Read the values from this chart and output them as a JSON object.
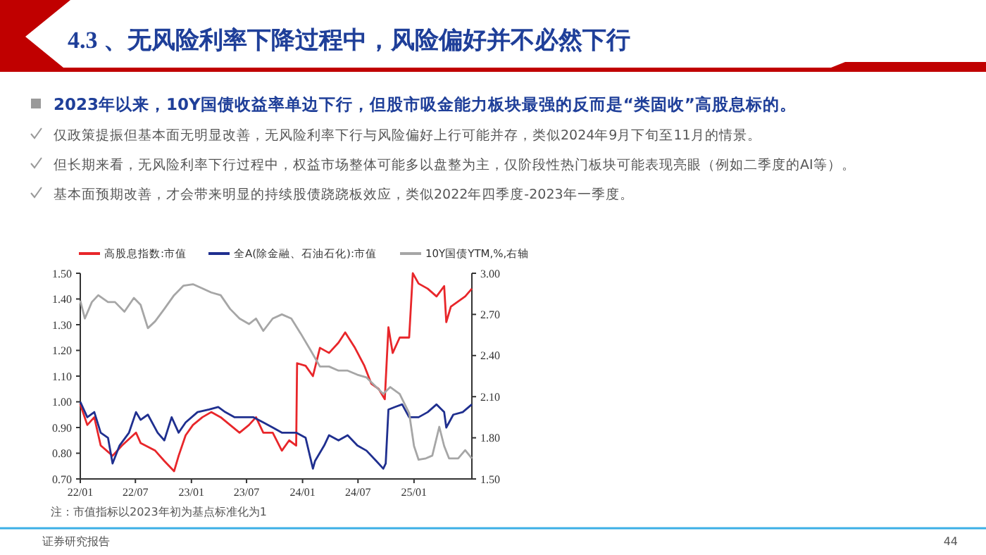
{
  "chart_data": {
    "type": "line",
    "title": "4.3 、无风险利率下降过程中，风险偏好并不必然下行",
    "subtitle": "2023年以来，10Y国债收益率单边下行，但股市吸金能力板块最强的反而是“类固收”高股息标的。",
    "annotations": [
      "仅政策提振但基本面无明显改善，无风险利率下行与风险偏好上行可能并存，类似2024年9月下旬至11月的情景。",
      "但长期来看，无风险利率下行过程中，权益市场整体可能多以盘整为主，仅阶段性热门板块可能表现亮眼（例如二季度的AI等）。",
      "基本面预期改善，才会带来明显的持续股债跷跷板效应，类似2022年四季度-2023年一季度。",
      "注：市值指标以2023年初为基点标准化为1",
      "证券研究报告",
      "44"
    ],
    "xlim": [
      "2022-01-01",
      "2025-07-10"
    ],
    "xticks": [
      {
        "value": "2022-01-01",
        "label": "22/01"
      },
      {
        "value": "2022-07-01",
        "label": "22/07"
      },
      {
        "value": "2023-01-01",
        "label": "23/01"
      },
      {
        "value": "2023-07-01",
        "label": "23/07"
      },
      {
        "value": "2024-01-01",
        "label": "24/01"
      },
      {
        "value": "2024-07-01",
        "label": "24/07"
      },
      {
        "value": "2025-01-01",
        "label": "25/01"
      }
    ],
    "ylim": [
      0.7,
      1.5
    ],
    "yticks": [
      {
        "value": 0.7,
        "label": "0.70"
      },
      {
        "value": 0.8,
        "label": "0.80"
      },
      {
        "value": 0.9,
        "label": "0.90"
      },
      {
        "value": 1.0,
        "label": "1.00"
      },
      {
        "value": 1.1,
        "label": "1.10"
      },
      {
        "value": 1.2,
        "label": "1.20"
      },
      {
        "value": 1.3,
        "label": "1.30"
      },
      {
        "value": 1.4,
        "label": "1.40"
      },
      {
        "value": 1.5,
        "label": "1.50"
      }
    ],
    "y2lim": [
      1.5,
      3.0
    ],
    "y2ticks": [
      {
        "value": 1.5,
        "label": "1.50"
      },
      {
        "value": 1.8,
        "label": "1.80"
      },
      {
        "value": 2.1,
        "label": "2.10"
      },
      {
        "value": 2.4,
        "label": "2.40"
      },
      {
        "value": 2.7,
        "label": "2.70"
      },
      {
        "value": 3.0,
        "label": "3.00"
      }
    ],
    "legend": "top",
    "grid": false,
    "marker": "none",
    "line_style": "solid",
    "series": [
      {
        "name": "高股息指数:市值",
        "color": "#e8262a",
        "x": [
          "2022-01-01",
          "2022-01-24",
          "2022-02-16",
          "2022-03-09",
          "2022-04-17",
          "2022-05-18",
          "2022-07-03",
          "2022-07-18",
          "2022-09-04",
          "2022-10-04",
          "2022-11-05",
          "2022-11-20",
          "2022-12-13",
          "2023-01-06",
          "2023-02-06",
          "2023-03-07",
          "2023-04-07",
          "2023-05-08",
          "2023-06-08",
          "2023-07-09",
          "2023-08-01",
          "2023-08-25",
          "2023-09-25",
          "2023-10-25",
          "2023-11-18",
          "2023-12-11",
          "2023-12-14",
          "2024-01-11",
          "2024-02-04",
          "2024-02-27",
          "2024-03-28",
          "2024-04-28",
          "2024-05-20",
          "2024-06-21",
          "2024-07-22",
          "2024-08-14",
          "2024-09-07",
          "2024-09-27",
          "2024-10-09",
          "2024-10-23",
          "2024-11-15",
          "2024-12-16",
          "2024-12-28",
          "2025-01-16",
          "2025-02-15",
          "2025-03-16",
          "2025-04-10",
          "2025-04-17",
          "2025-05-02",
          "2025-06-18",
          "2025-07-10"
        ],
        "values": [
          0.99,
          0.91,
          0.94,
          0.83,
          0.79,
          0.83,
          0.88,
          0.84,
          0.81,
          0.77,
          0.73,
          0.79,
          0.87,
          0.91,
          0.94,
          0.96,
          0.94,
          0.91,
          0.88,
          0.91,
          0.94,
          0.88,
          0.88,
          0.81,
          0.85,
          0.83,
          1.15,
          1.14,
          1.1,
          1.21,
          1.19,
          1.23,
          1.27,
          1.21,
          1.14,
          1.07,
          1.05,
          1.01,
          1.29,
          1.19,
          1.25,
          1.25,
          1.5,
          1.46,
          1.44,
          1.41,
          1.45,
          1.31,
          1.37,
          1.41,
          1.44
        ]
      },
      {
        "name": "全A(除金融、石油石化):市值",
        "color": "#1f2f8f",
        "x": [
          "2022-01-01",
          "2022-01-24",
          "2022-02-16",
          "2022-03-09",
          "2022-04-02",
          "2022-04-17",
          "2022-05-10",
          "2022-06-10",
          "2022-07-03",
          "2022-07-18",
          "2022-08-11",
          "2022-09-12",
          "2022-10-04",
          "2022-10-28",
          "2022-11-20",
          "2022-12-13",
          "2023-01-21",
          "2023-02-28",
          "2023-03-30",
          "2023-04-22",
          "2023-05-23",
          "2023-06-23",
          "2023-07-24",
          "2023-08-25",
          "2023-09-25",
          "2023-10-25",
          "2023-12-11",
          "2024-01-11",
          "2024-02-04",
          "2024-02-11",
          "2024-03-12",
          "2024-03-28",
          "2024-04-28",
          "2024-05-28",
          "2024-06-29",
          "2024-07-29",
          "2024-08-30",
          "2024-09-22",
          "2024-09-30",
          "2024-10-09",
          "2024-10-31",
          "2024-11-23",
          "2024-12-16",
          "2025-01-16",
          "2025-02-15",
          "2025-03-16",
          "2025-04-10",
          "2025-04-17",
          "2025-05-10",
          "2025-06-10",
          "2025-07-10"
        ],
        "values": [
          1.0,
          0.94,
          0.96,
          0.88,
          0.86,
          0.76,
          0.83,
          0.88,
          0.96,
          0.93,
          0.95,
          0.88,
          0.85,
          0.94,
          0.88,
          0.92,
          0.96,
          0.97,
          0.98,
          0.96,
          0.94,
          0.94,
          0.94,
          0.92,
          0.9,
          0.88,
          0.88,
          0.86,
          0.74,
          0.77,
          0.83,
          0.87,
          0.85,
          0.87,
          0.83,
          0.81,
          0.77,
          0.74,
          0.76,
          0.97,
          0.98,
          0.99,
          0.94,
          0.94,
          0.96,
          0.99,
          0.96,
          0.9,
          0.95,
          0.96,
          0.99
        ]
      },
      {
        "name": "10Y国债YTM,%,右轴",
        "color": "#a6a6a6",
        "axis": "y2",
        "x": [
          "2022-01-01",
          "2022-01-16",
          "2022-02-08",
          "2022-03-01",
          "2022-04-02",
          "2022-04-25",
          "2022-05-26",
          "2022-06-26",
          "2022-07-18",
          "2022-08-11",
          "2022-09-04",
          "2022-10-04",
          "2022-11-05",
          "2022-12-06",
          "2023-01-06",
          "2023-02-06",
          "2023-03-07",
          "2023-04-07",
          "2023-05-08",
          "2023-06-08",
          "2023-07-09",
          "2023-08-01",
          "2023-08-25",
          "2023-09-25",
          "2023-10-25",
          "2023-11-25",
          "2023-12-26",
          "2024-01-27",
          "2024-02-27",
          "2024-03-28",
          "2024-04-28",
          "2024-05-28",
          "2024-06-29",
          "2024-07-29",
          "2024-08-30",
          "2024-09-22",
          "2024-10-15",
          "2024-11-15",
          "2024-12-16",
          "2025-01-01",
          "2025-01-16",
          "2025-02-09",
          "2025-03-02",
          "2025-03-25",
          "2025-04-10",
          "2025-04-26",
          "2025-05-26",
          "2025-06-18",
          "2025-07-10"
        ],
        "values": [
          2.8,
          2.67,
          2.79,
          2.84,
          2.79,
          2.79,
          2.72,
          2.82,
          2.77,
          2.6,
          2.65,
          2.74,
          2.84,
          2.91,
          2.92,
          2.89,
          2.86,
          2.84,
          2.74,
          2.67,
          2.63,
          2.67,
          2.58,
          2.67,
          2.7,
          2.67,
          2.56,
          2.44,
          2.32,
          2.32,
          2.29,
          2.29,
          2.26,
          2.24,
          2.17,
          2.12,
          2.17,
          2.12,
          1.98,
          1.74,
          1.64,
          1.65,
          1.67,
          1.88,
          1.74,
          1.65,
          1.65,
          1.71,
          1.65
        ]
      }
    ]
  }
}
